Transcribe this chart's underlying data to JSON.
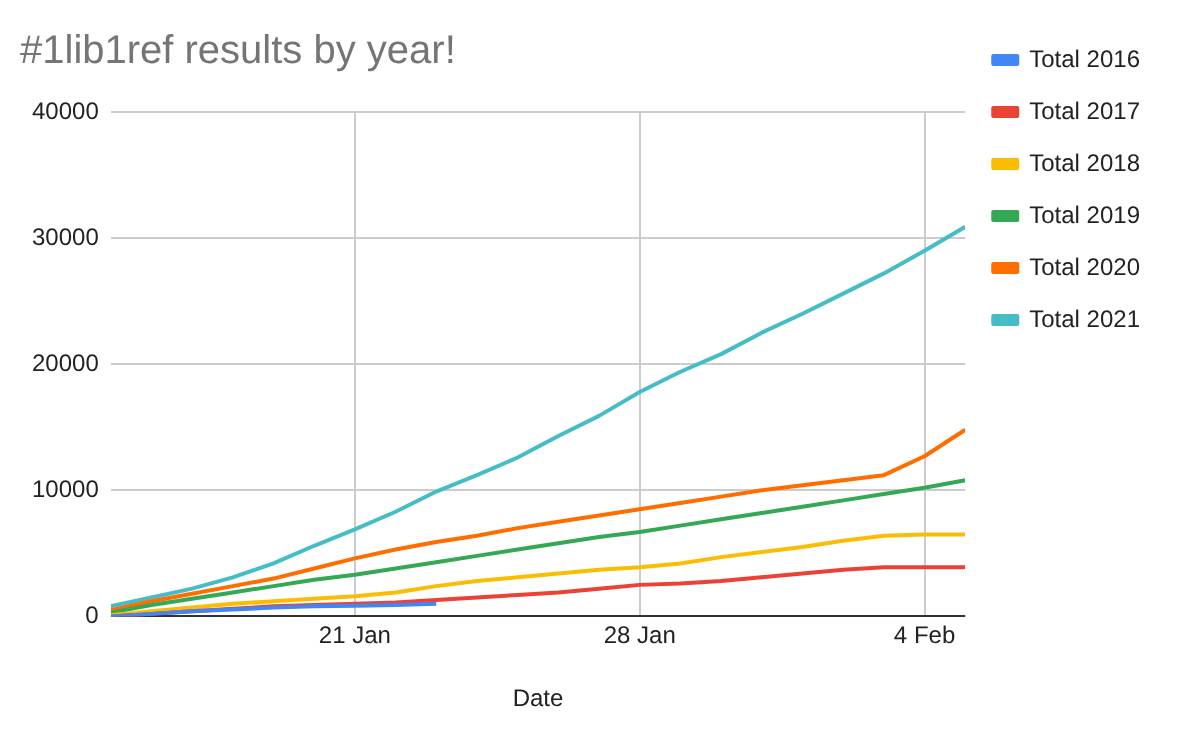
{
  "chart_data": {
    "type": "line",
    "title": "#1lib1ref results by year!",
    "xlabel": "Date",
    "x": [
      "--01-15",
      "--01-16",
      "--01-17",
      "--01-18",
      "--01-19",
      "--01-20",
      "--01-21",
      "--01-22",
      "--01-23",
      "--01-24",
      "--01-25",
      "--01-26",
      "--01-27",
      "--01-28",
      "--01-29",
      "--01-30",
      "--01-31",
      "--02-01",
      "--02-02",
      "--02-03",
      "--02-04",
      "--02-05"
    ],
    "xlim": [
      "--01-15",
      "--02-05"
    ],
    "xticks": [
      {
        "value": "--01-21",
        "label": "21 Jan"
      },
      {
        "value": "--01-28",
        "label": "28 Jan"
      },
      {
        "value": "--02-04",
        "label": "4 Feb"
      }
    ],
    "ylim": [
      0,
      40000
    ],
    "yticks": [
      0,
      10000,
      20000,
      30000,
      40000
    ],
    "grid": true,
    "legend": "right",
    "series": [
      {
        "name": "Total 2016",
        "color": "#4285f4",
        "values": [
          0,
          200,
          400,
          550,
          700,
          800,
          850,
          900,
          1000,
          null,
          null,
          null,
          null,
          null,
          null,
          null,
          null,
          null,
          null,
          null,
          null,
          null
        ]
      },
      {
        "name": "Total 2017",
        "color": "#ea4335",
        "values": [
          0,
          200,
          400,
          600,
          800,
          900,
          1000,
          1100,
          1300,
          1500,
          1700,
          1900,
          2200,
          2500,
          2600,
          2800,
          3100,
          3400,
          3700,
          3900,
          3900,
          3900
        ]
      },
      {
        "name": "Total 2018",
        "color": "#fbbc04",
        "values": [
          100,
          400,
          700,
          1000,
          1200,
          1400,
          1600,
          1900,
          2400,
          2800,
          3100,
          3400,
          3700,
          3900,
          4200,
          4700,
          5100,
          5500,
          6000,
          6400,
          6500,
          6500
        ]
      },
      {
        "name": "Total 2019",
        "color": "#34a853",
        "values": [
          300,
          900,
          1400,
          1900,
          2400,
          2900,
          3300,
          3800,
          4300,
          4800,
          5300,
          5800,
          6300,
          6700,
          7200,
          7700,
          8200,
          8700,
          9200,
          9700,
          10200,
          10800
        ]
      },
      {
        "name": "Total 2020",
        "color": "#ff6d01",
        "values": [
          500,
          1200,
          1800,
          2400,
          3000,
          3800,
          4600,
          5300,
          5900,
          6400,
          7000,
          7500,
          8000,
          8500,
          9000,
          9500,
          10000,
          10400,
          10800,
          11200,
          12700,
          14800
        ]
      },
      {
        "name": "Total 2021",
        "color": "#46bdc6",
        "values": [
          800,
          1500,
          2200,
          3100,
          4200,
          5600,
          6900,
          8300,
          9900,
          11200,
          12600,
          14300,
          15900,
          17800,
          19400,
          20800,
          22500,
          24000,
          25600,
          27200,
          29000,
          30900
        ]
      }
    ]
  }
}
